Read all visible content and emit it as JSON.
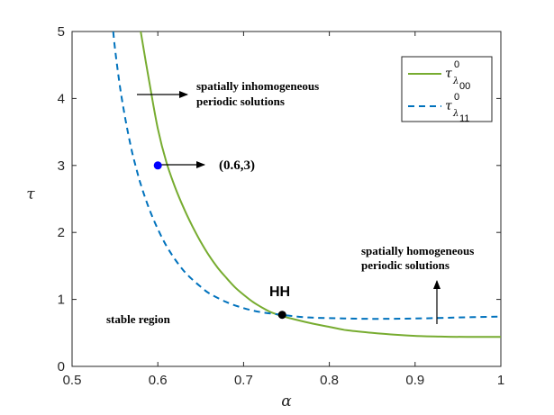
{
  "chart_data": {
    "type": "line",
    "xlabel": "α",
    "ylabel": "τ",
    "xlim": [
      0.5,
      1.0
    ],
    "ylim": [
      0,
      5
    ],
    "x_ticks": [
      "0.5",
      "0.6",
      "0.7",
      "0.8",
      "0.9",
      "1"
    ],
    "y_ticks": [
      "0",
      "1",
      "2",
      "3",
      "4",
      "5"
    ],
    "grid": false,
    "legend_position": "top-right",
    "series": [
      {
        "name": "τ^0_λ00",
        "legend_symbol": "τ",
        "legend_sup": "0",
        "legend_sub": "λ",
        "legend_subsub": "00",
        "color": "#77AC30",
        "style": "solid",
        "x": [
          0.58,
          0.59,
          0.6,
          0.61,
          0.62,
          0.63,
          0.64,
          0.65,
          0.66,
          0.67,
          0.68,
          0.69,
          0.7,
          0.71,
          0.72,
          0.73,
          0.74,
          0.745,
          0.76,
          0.78,
          0.8,
          0.82,
          0.85,
          0.88,
          0.9,
          0.93,
          0.96,
          1.0
        ],
        "y": [
          5.0,
          4.25,
          3.55,
          3.05,
          2.68,
          2.37,
          2.1,
          1.86,
          1.65,
          1.47,
          1.32,
          1.18,
          1.07,
          0.97,
          0.89,
          0.82,
          0.77,
          0.75,
          0.7,
          0.64,
          0.59,
          0.54,
          0.5,
          0.47,
          0.455,
          0.445,
          0.44,
          0.44
        ]
      },
      {
        "name": "τ^0_λ11",
        "legend_symbol": "τ",
        "legend_sup": "0",
        "legend_sub": "λ",
        "legend_subsub": "11",
        "color": "#0072BD",
        "style": "dashed",
        "x": [
          0.548,
          0.55,
          0.555,
          0.56,
          0.565,
          0.57,
          0.575,
          0.58,
          0.59,
          0.6,
          0.61,
          0.62,
          0.63,
          0.64,
          0.65,
          0.66,
          0.68,
          0.7,
          0.72,
          0.745,
          0.77,
          0.8,
          0.85,
          0.9,
          0.95,
          1.0
        ],
        "y": [
          5.0,
          4.75,
          4.25,
          3.85,
          3.5,
          3.2,
          2.95,
          2.72,
          2.35,
          2.05,
          1.8,
          1.6,
          1.43,
          1.3,
          1.19,
          1.09,
          0.96,
          0.87,
          0.81,
          0.77,
          0.735,
          0.72,
          0.71,
          0.715,
          0.73,
          0.745
        ]
      }
    ],
    "points": [
      {
        "name": "blue-point",
        "x": 0.6,
        "y": 3.0,
        "color": "#0000FF"
      },
      {
        "name": "hh-point",
        "x": 0.745,
        "y": 0.77,
        "color": "#000000"
      }
    ],
    "annotations": {
      "inhomogeneous_line1": "spatially inhomogeneous",
      "inhomogeneous_line2": "periodic solutions",
      "point_label": "(0.6,3)",
      "hh_label": "HH",
      "homogeneous_line1": "spatially homogeneous",
      "homogeneous_line2": "periodic solutions",
      "stable_label": "stable region"
    }
  }
}
